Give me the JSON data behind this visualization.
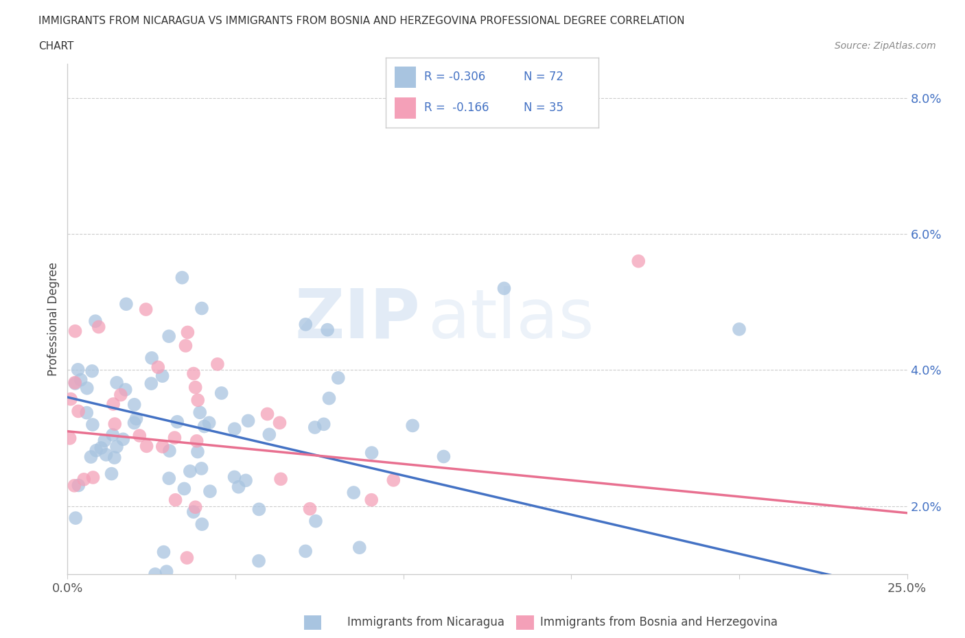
{
  "title_line1": "IMMIGRANTS FROM NICARAGUA VS IMMIGRANTS FROM BOSNIA AND HERZEGOVINA PROFESSIONAL DEGREE CORRELATION",
  "title_line2": "CHART",
  "source_text": "Source: ZipAtlas.com",
  "ylabel": "Professional Degree",
  "xlim": [
    0.0,
    0.25
  ],
  "ylim": [
    0.01,
    0.085
  ],
  "xticks": [
    0.0,
    0.05,
    0.1,
    0.15,
    0.2,
    0.25
  ],
  "yticks": [
    0.02,
    0.04,
    0.06,
    0.08
  ],
  "ytick_labels": [
    "2.0%",
    "4.0%",
    "6.0%",
    "8.0%"
  ],
  "xtick_labels": [
    "0.0%",
    "",
    "",
    "",
    "",
    "25.0%"
  ],
  "nicaragua_color": "#a8c4e0",
  "bosnia_color": "#f4a0b8",
  "nicaragua_line_color": "#4472c4",
  "bosnia_line_color": "#e87090",
  "legend_r1": "R = -0.306",
  "legend_n1": "N = 72",
  "legend_r2": "R =  -0.166",
  "legend_n2": "N = 35",
  "watermark_zip": "ZIP",
  "watermark_atlas": "atlas",
  "nicaragua_label": "Immigrants from Nicaragua",
  "bosnia_label": "Immigrants from Bosnia and Herzegovina",
  "nicaragua_R": -0.306,
  "nicaragua_N": 72,
  "bosnia_R": -0.166,
  "bosnia_N": 35,
  "nicaragua_intercept": 0.036,
  "nicaragua_slope": -0.115,
  "bosnia_intercept": 0.031,
  "bosnia_slope": -0.048,
  "background_color": "#ffffff",
  "grid_color": "#cccccc"
}
